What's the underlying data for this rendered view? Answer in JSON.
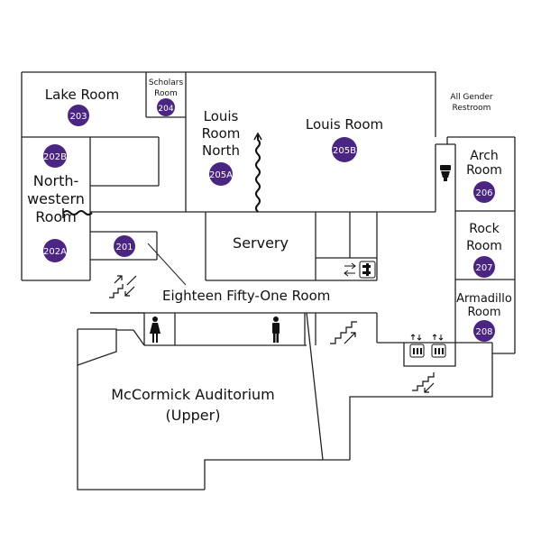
{
  "colors": {
    "badge": "#4b2582",
    "wall": "#222222",
    "background": "#ffffff"
  },
  "rooms": {
    "lake": {
      "name": "Lake Room",
      "number": "203"
    },
    "scholars": {
      "name_line1": "Scholars",
      "name_line2": "Room",
      "number": "204"
    },
    "louis_north": {
      "name_line1": "Louis",
      "name_line2": "Room",
      "name_line3": "North",
      "number": "205A"
    },
    "louis": {
      "name": "Louis Room",
      "number": "205B"
    },
    "northwestern": {
      "name_line1": "North-",
      "name_line2": "western",
      "name_line3": "Room",
      "number_top": "202B",
      "number_bottom": "202A"
    },
    "eighteen_fifty_one": {
      "name": "Eighteen Fifty-One Room",
      "number": "201"
    },
    "servery": {
      "name": "Servery"
    },
    "arch": {
      "name_line1": "Arch",
      "name_line2": "Room",
      "number": "206"
    },
    "rock": {
      "name_line1": "Rock",
      "name_line2": "Room",
      "number": "207"
    },
    "armadillo": {
      "name_line1": "Armadillo",
      "name_line2": "Room",
      "number": "208"
    },
    "auditorium": {
      "name_line1": "McCormick Auditorium",
      "name_line2": "(Upper)"
    }
  },
  "restroom_label": {
    "line1": "All Gender",
    "line2": "Restroom"
  },
  "icons": [
    "stairs-icon",
    "elevator-icon",
    "women-restroom-icon",
    "men-restroom-icon",
    "all-gender-restroom-icon",
    "accessible-elevator-icon",
    "folding-wall-icon"
  ]
}
